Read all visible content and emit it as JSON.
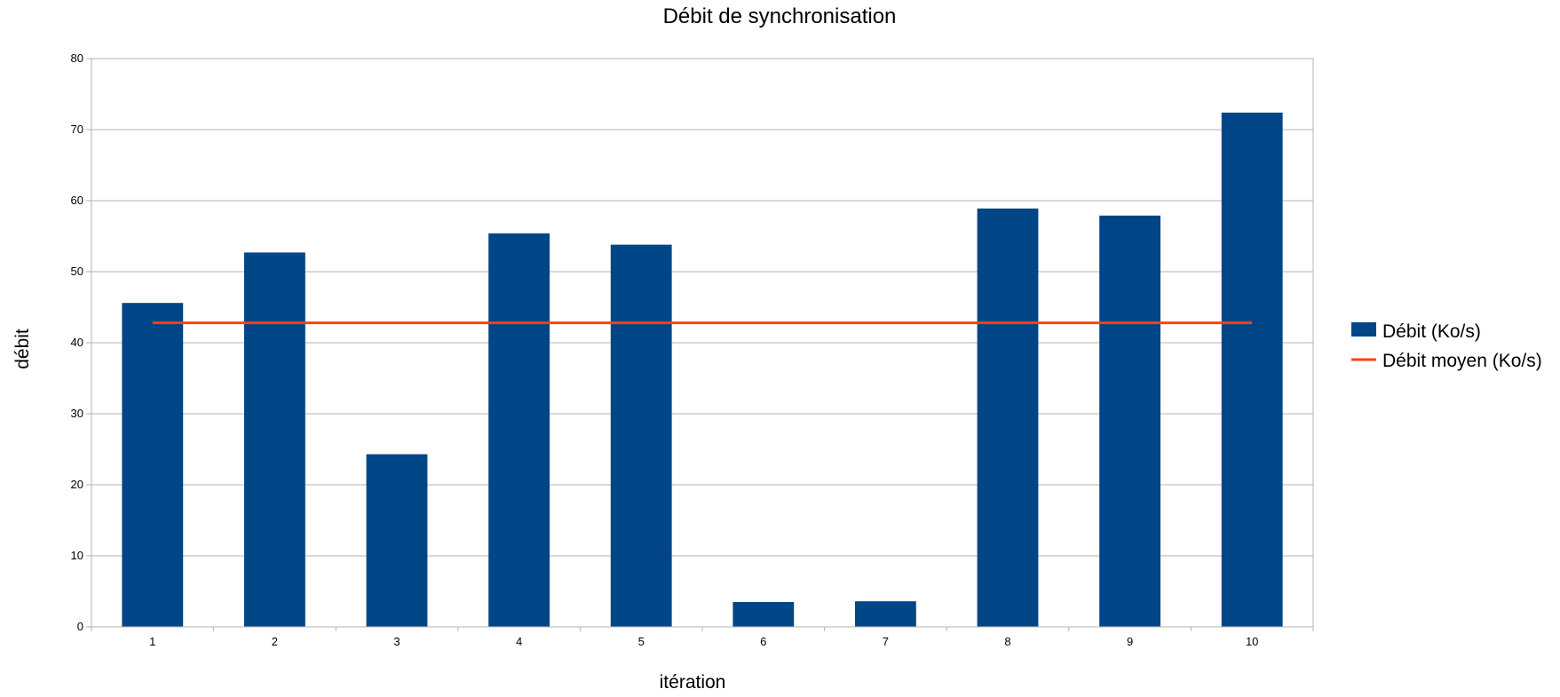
{
  "chart_data": {
    "type": "bar",
    "title": "Débit de synchronisation",
    "xlabel": "itération",
    "ylabel": "débit",
    "categories": [
      "1",
      "2",
      "3",
      "4",
      "5",
      "6",
      "7",
      "8",
      "9",
      "10"
    ],
    "series": [
      {
        "name": "Débit (Ko/s)",
        "type": "bar",
        "color": "#004586",
        "values": [
          45.6,
          52.7,
          24.3,
          55.4,
          53.8,
          3.5,
          3.6,
          58.9,
          57.9,
          72.4
        ]
      },
      {
        "name": "Débit moyen (Ko/s)",
        "type": "line",
        "color": "#ff420e",
        "values": [
          42.8,
          42.8,
          42.8,
          42.8,
          42.8,
          42.8,
          42.8,
          42.8,
          42.8,
          42.8
        ]
      }
    ],
    "ylim": [
      0,
      80
    ],
    "yticks": [
      "0",
      "10",
      "20",
      "30",
      "40",
      "50",
      "60",
      "70",
      "80"
    ],
    "grid": true,
    "legend_position": "right"
  }
}
